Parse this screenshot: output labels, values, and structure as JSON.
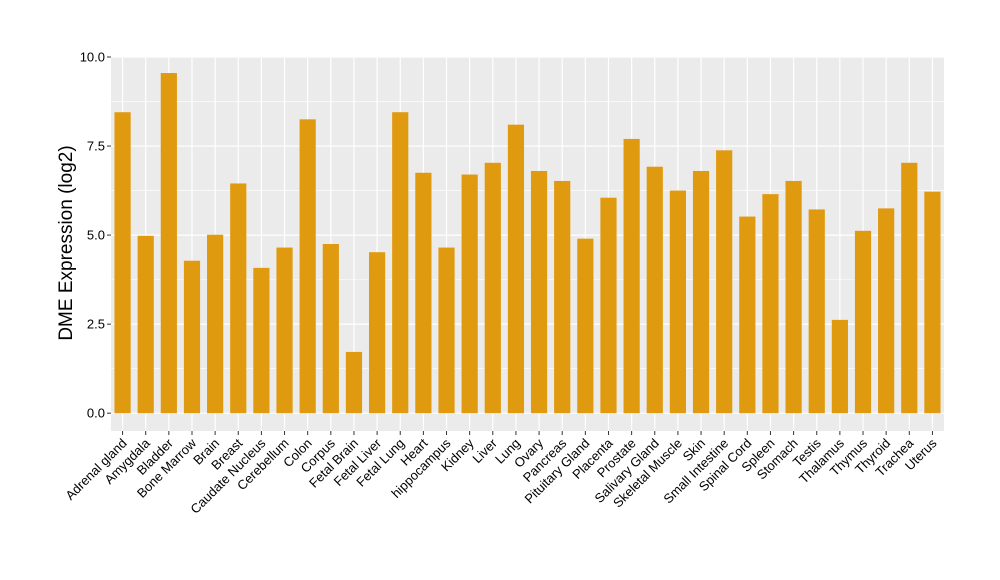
{
  "chart_data": {
    "type": "bar",
    "title": "",
    "xlabel": "",
    "ylabel": "DME Expression (log2)",
    "ylim": [
      -0.5,
      10.0
    ],
    "yticks": [
      "0.0",
      "2.5",
      "5.0",
      "7.5",
      "10.0"
    ],
    "ytick_values": [
      0,
      2.5,
      5.0,
      7.5,
      10.0
    ],
    "grid": true,
    "bar_color": "#E09A10",
    "panel_color": "#EBEBEB",
    "grid_color": "#FFFFFF",
    "categories": [
      "Adrenal gland",
      "Amygdala",
      "Bladder",
      "Bone Marrow",
      "Brain",
      "Breast",
      "Caudate Nucleus",
      "Cerebellum",
      "Colon",
      "Corpus",
      "Fetal Brain",
      "Fetal Liver",
      "Fetal Lung",
      "Heart",
      "hippocampus",
      "Kidney",
      "Liver",
      "Lung",
      "Ovary",
      "Pancreas",
      "Pituitary Gland",
      "Placenta",
      "Prostate",
      "Salivary Gland",
      "Skeletal Muscle",
      "Skin",
      "Small Intestine",
      "Spinal Cord",
      "Spleen",
      "Stomach",
      "Testis",
      "Thalamus",
      "Thymus",
      "Thyroid",
      "Trachea",
      "Uterus"
    ],
    "values": [
      8.45,
      4.98,
      9.55,
      4.28,
      5.01,
      6.45,
      4.08,
      4.65,
      8.25,
      4.75,
      1.72,
      4.52,
      8.45,
      6.75,
      4.65,
      6.7,
      7.03,
      8.1,
      6.8,
      6.52,
      4.9,
      6.05,
      7.7,
      6.92,
      6.25,
      6.8,
      7.38,
      5.52,
      6.15,
      6.52,
      5.72,
      2.62,
      5.12,
      5.75,
      7.03,
      6.22
    ]
  }
}
